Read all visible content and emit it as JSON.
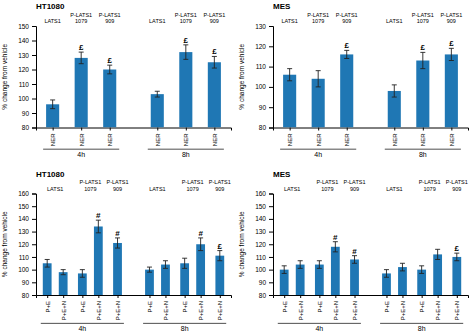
{
  "chart_data": [
    {
      "type": "bar",
      "title": "HT1080",
      "y_label": "% change from vehicle",
      "ylim": [
        80,
        150
      ],
      "yticks": [
        80,
        90,
        100,
        110,
        120,
        130,
        140,
        150
      ],
      "groups": [
        {
          "label": "4h",
          "columns": [
            {
              "label": "LATS1",
              "categories": [
                "NER"
              ],
              "values": [
                96
              ],
              "errors": [
                3
              ],
              "annotations": [
                null
              ]
            },
            {
              "label": "P-LATS1\n1079",
              "categories": [
                "NER"
              ],
              "values": [
                128
              ],
              "errors": [
                4
              ],
              "annotations": [
                "£"
              ]
            },
            {
              "label": "P-LATS1\n909",
              "categories": [
                "NER"
              ],
              "values": [
                120
              ],
              "errors": [
                3
              ],
              "annotations": [
                "£"
              ]
            }
          ]
        },
        {
          "label": "8h",
          "columns": [
            {
              "label": "LATS1",
              "categories": [
                "NER"
              ],
              "values": [
                103
              ],
              "errors": [
                2
              ],
              "annotations": [
                null
              ]
            },
            {
              "label": "P-LATS1\n1079",
              "categories": [
                "NER"
              ],
              "values": [
                132
              ],
              "errors": [
                5
              ],
              "annotations": [
                "£"
              ]
            },
            {
              "label": "P-LATS1\n909",
              "categories": [
                "NER"
              ],
              "values": [
                125
              ],
              "errors": [
                4
              ],
              "annotations": [
                "£"
              ]
            }
          ]
        }
      ]
    },
    {
      "type": "bar",
      "title": "MES",
      "y_label": "% change from vehicle",
      "ylim": [
        80,
        130
      ],
      "yticks": [
        80,
        90,
        100,
        110,
        120,
        130
      ],
      "groups": [
        {
          "label": "4h",
          "columns": [
            {
              "label": "LATS1",
              "categories": [
                "NER"
              ],
              "values": [
                106
              ],
              "errors": [
                3
              ],
              "annotations": [
                null
              ]
            },
            {
              "label": "P-LATS1\n1079",
              "categories": [
                "NER"
              ],
              "values": [
                104
              ],
              "errors": [
                4
              ],
              "annotations": [
                null
              ]
            },
            {
              "label": "P-LATS1\n909",
              "categories": [
                "NER"
              ],
              "values": [
                116
              ],
              "errors": [
                2
              ],
              "annotations": [
                "£"
              ]
            }
          ]
        },
        {
          "label": "8h",
          "columns": [
            {
              "label": "LATS1",
              "categories": [
                "NER"
              ],
              "values": [
                98
              ],
              "errors": [
                3
              ],
              "annotations": [
                null
              ]
            },
            {
              "label": "P-LATS1\n1079",
              "categories": [
                "NER"
              ],
              "values": [
                113
              ],
              "errors": [
                4
              ],
              "annotations": [
                "£"
              ]
            },
            {
              "label": "P-LATS1\n909",
              "categories": [
                "NER"
              ],
              "values": [
                116
              ],
              "errors": [
                3
              ],
              "annotations": [
                "£"
              ]
            }
          ]
        }
      ]
    },
    {
      "type": "bar",
      "title": "HT1080",
      "y_label": "% change from vehicle",
      "ylim": [
        80,
        160
      ],
      "yticks": [
        80,
        90,
        100,
        110,
        120,
        130,
        140,
        150,
        160
      ],
      "groups": [
        {
          "label": "4h",
          "columns": [
            {
              "label": "LATS1",
              "categories": [
                "P+E",
                "P+E+N"
              ],
              "values": [
                105,
                98
              ],
              "errors": [
                3,
                2
              ],
              "annotations": [
                null,
                null
              ]
            },
            {
              "label": "P-LATS1\n1079",
              "categories": [
                "P+E",
                "P+E+N"
              ],
              "values": [
                97,
                134
              ],
              "errors": [
                3,
                5
              ],
              "annotations": [
                null,
                "#"
              ]
            },
            {
              "label": "P-LATS1\n909",
              "categories": [
                "P+E+N"
              ],
              "values": [
                121
              ],
              "errors": [
                4
              ],
              "annotations": [
                "#"
              ]
            }
          ]
        },
        {
          "label": "8h",
          "columns": [
            {
              "label": "LATS1",
              "categories": [
                "P+E",
                "P+E+N"
              ],
              "values": [
                100,
                104
              ],
              "errors": [
                2,
                3
              ],
              "annotations": [
                null,
                null
              ]
            },
            {
              "label": "P-LATS1\n1079",
              "categories": [
                "P+E",
                "P+E+N"
              ],
              "values": [
                105,
                120
              ],
              "errors": [
                4,
                5
              ],
              "annotations": [
                null,
                "#"
              ]
            },
            {
              "label": "P-LATS1\n909",
              "categories": [
                "P+E+N"
              ],
              "values": [
                111
              ],
              "errors": [
                4
              ],
              "annotations": [
                "£"
              ]
            }
          ]
        }
      ]
    },
    {
      "type": "bar",
      "title": "MES",
      "y_label": "% change from vehicle",
      "ylim": [
        80,
        160
      ],
      "yticks": [
        80,
        90,
        100,
        110,
        120,
        130,
        140,
        150,
        160
      ],
      "groups": [
        {
          "label": "4h",
          "columns": [
            {
              "label": "LATS1",
              "categories": [
                "P+E",
                "P+E+N"
              ],
              "values": [
                100,
                104
              ],
              "errors": [
                3,
                3
              ],
              "annotations": [
                null,
                null
              ]
            },
            {
              "label": "P-LATS1\n1079",
              "categories": [
                "P+E",
                "P+E+N"
              ],
              "values": [
                104,
                118
              ],
              "errors": [
                3,
                4
              ],
              "annotations": [
                null,
                "#"
              ]
            },
            {
              "label": "P-LATS1\n909",
              "categories": [
                "P+E+N"
              ],
              "values": [
                108
              ],
              "errors": [
                3
              ],
              "annotations": [
                "#"
              ]
            }
          ]
        },
        {
          "label": "8h",
          "columns": [
            {
              "label": "LATS1",
              "categories": [
                "P+E",
                "P+E+N"
              ],
              "values": [
                97,
                102
              ],
              "errors": [
                3,
                3
              ],
              "annotations": [
                null,
                null
              ]
            },
            {
              "label": "P-LATS1\n1079",
              "categories": [
                "P+E",
                "P+E+N"
              ],
              "values": [
                100,
                112
              ],
              "errors": [
                3,
                4
              ],
              "annotations": [
                null,
                null
              ]
            },
            {
              "label": "P-LATS1\n909",
              "categories": [
                "P+E+N"
              ],
              "values": [
                110
              ],
              "errors": [
                3
              ],
              "annotations": [
                "£"
              ]
            }
          ]
        }
      ]
    }
  ]
}
